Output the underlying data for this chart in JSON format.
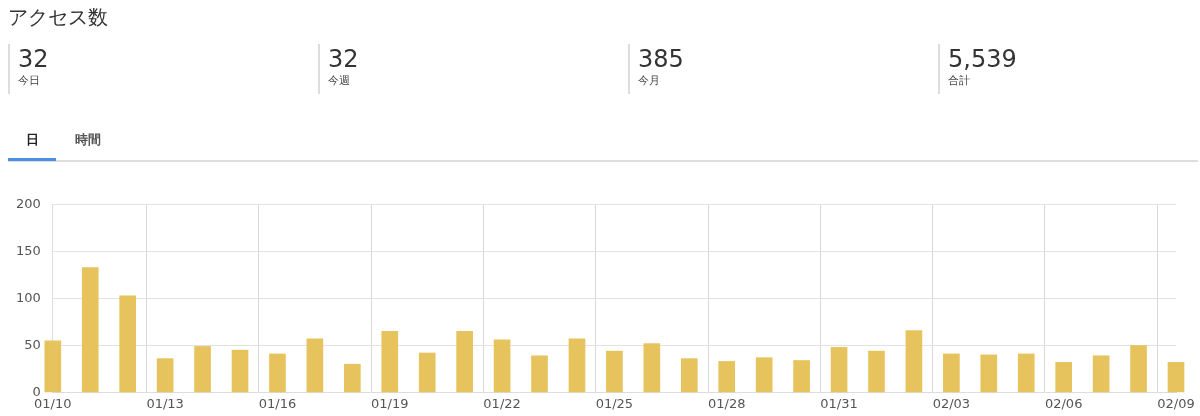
{
  "chart_data": {
    "type": "bar",
    "title": "アクセス数",
    "annotations": [
      "32",
      "今日",
      "32",
      "今週",
      "385",
      "今月",
      "5,539",
      "合計",
      "日",
      "時間"
    ],
    "categories": [
      "01/10",
      null,
      null,
      "01/13",
      null,
      null,
      "01/16",
      null,
      null,
      "01/19",
      null,
      null,
      "01/22",
      null,
      null,
      "01/25",
      null,
      null,
      "01/28",
      null,
      null,
      "01/31",
      null,
      null,
      "02/03",
      null,
      null,
      "02/06",
      null,
      null,
      "02/09"
    ],
    "values": [
      55,
      133,
      103,
      36,
      49,
      45,
      41,
      57,
      30,
      65,
      42,
      65,
      56,
      39,
      57,
      44,
      52,
      36,
      33,
      37,
      34,
      48,
      44,
      66,
      41,
      40,
      41,
      32,
      39,
      50,
      32
    ],
    "color": "#e6c35c",
    "ylim": [
      0,
      200
    ],
    "yticks": [
      0,
      50,
      100,
      150,
      200
    ],
    "grid": true,
    "legend": false
  }
}
